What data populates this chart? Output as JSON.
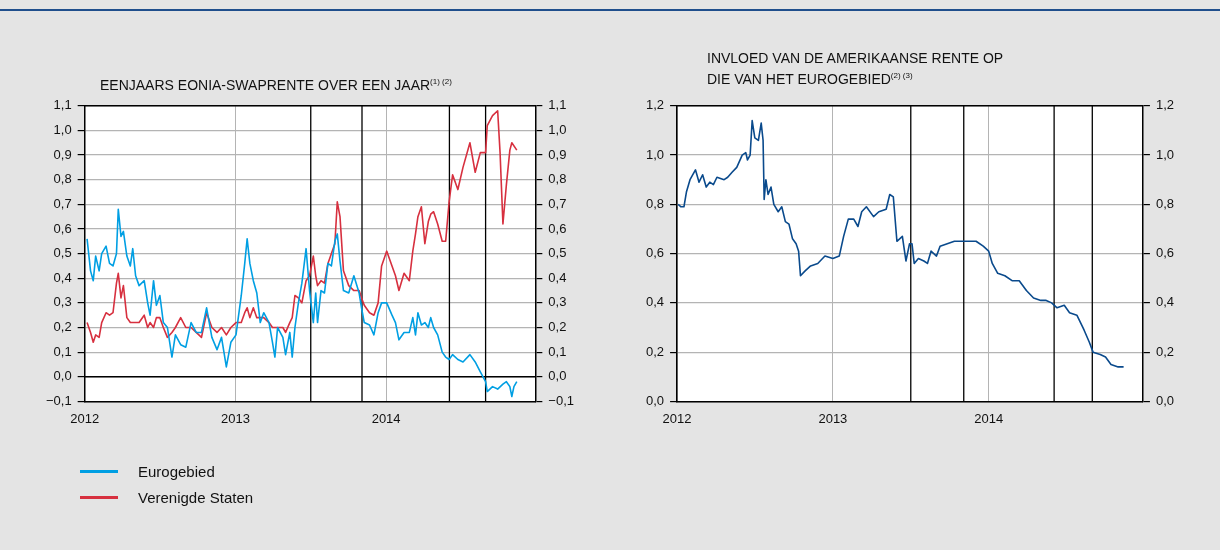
{
  "chart_data": [
    {
      "type": "line",
      "title": "EENJAARS EONIA-SWAPRENTE OVER EEN JAAR$^{(1) (2)}$",
      "xlim": [
        2012.0,
        2014.99
      ],
      "xticks": [
        2012,
        2013,
        2014
      ],
      "ylim": [
        -0.1,
        1.1
      ],
      "yticks": [
        {
          "value": -0.1,
          "label": "−0,1"
        },
        {
          "value": 0,
          "label": "0,0"
        },
        {
          "value": 0.1,
          "label": "0,1"
        },
        {
          "value": 0.2,
          "label": "0,2"
        },
        {
          "value": 0.3,
          "label": "0,3"
        },
        {
          "value": 0.4,
          "label": "0,4"
        },
        {
          "value": 0.5,
          "label": "0,5"
        },
        {
          "value": 0.6,
          "label": "0,6"
        },
        {
          "value": 0.7,
          "label": "0,7"
        },
        {
          "value": 0.8,
          "label": "0,8"
        },
        {
          "value": 0.9,
          "label": "0,9"
        },
        {
          "value": 1.0,
          "label": "1,0"
        },
        {
          "value": 1.1,
          "label": "1,1"
        }
      ],
      "y2lim": [
        -0.1,
        1.1
      ],
      "y2ticks": [
        {
          "value": -0.1,
          "label": "−0,1"
        },
        {
          "value": 0,
          "label": "0,0"
        },
        {
          "value": 0.1,
          "label": "0,1"
        },
        {
          "value": 0.2,
          "label": "0,2"
        },
        {
          "value": 0.3,
          "label": "0,3"
        },
        {
          "value": 0.4,
          "label": "0,4"
        },
        {
          "value": 0.5,
          "label": "0,5"
        },
        {
          "value": 0.6,
          "label": "0,6"
        },
        {
          "value": 0.7,
          "label": "0,7"
        },
        {
          "value": 0.8,
          "label": "0,8"
        },
        {
          "value": 0.9,
          "label": "0,9"
        },
        {
          "value": 1.0,
          "label": "1,0"
        },
        {
          "value": 1.1,
          "label": "1,1"
        }
      ],
      "grid": true,
      "legend": "bottom",
      "ref_lines": [
        {
          "axis": "y",
          "value": 0,
          "color": "#000000"
        },
        {
          "axis": "x",
          "value": 2013.5,
          "color": "#000000"
        },
        {
          "axis": "x",
          "value": 2013.84,
          "color": "#000000"
        },
        {
          "axis": "x",
          "value": 2014.42,
          "color": "#000000"
        },
        {
          "axis": "x",
          "value": 2014.66,
          "color": "#000000"
        }
      ],
      "series": [
        {
          "name": "Eurogebied",
          "color": "#009fe3",
          "x": [
            2012.016,
            2012.039,
            2012.057,
            2012.073,
            2012.096,
            2012.113,
            2012.142,
            2012.165,
            2012.188,
            2012.211,
            2012.223,
            2012.241,
            2012.257,
            2012.28,
            2012.303,
            2012.319,
            2012.338,
            2012.361,
            2012.395,
            2012.418,
            2012.434,
            2012.457,
            2012.476,
            2012.499,
            2012.522,
            2012.549,
            2012.579,
            2012.602,
            2012.637,
            2012.671,
            2012.706,
            2012.74,
            2012.775,
            2012.809,
            2012.844,
            2012.878,
            2012.908,
            2012.94,
            2012.97,
            2013.004,
            2013.039,
            2013.062,
            2013.078,
            2013.096,
            2013.119,
            2013.142,
            2013.165,
            2013.188,
            2013.223,
            2013.246,
            2013.262,
            2013.28,
            2013.315,
            2013.333,
            2013.361,
            2013.377,
            2013.395,
            2013.418,
            2013.441,
            2013.469,
            2013.492,
            2013.517,
            2013.533,
            2013.545,
            2013.568,
            2013.591,
            2013.614,
            2013.637,
            2013.66,
            2013.676,
            2013.694,
            2013.717,
            2013.752,
            2013.786,
            2013.821,
            2013.837,
            2013.855,
            2013.89,
            2013.919,
            2013.947,
            2013.97,
            2014.004,
            2014.039,
            2014.062,
            2014.085,
            2014.119,
            2014.154,
            2014.177,
            2014.195,
            2014.211,
            2014.234,
            2014.257,
            2014.28,
            2014.296,
            2014.315,
            2014.342,
            2014.372,
            2014.395,
            2014.418,
            2014.441,
            2014.476,
            2014.51,
            2014.556,
            2014.591,
            2014.625,
            2014.66,
            2014.671,
            2014.706,
            2014.74,
            2014.775,
            2014.798,
            2014.821,
            2014.834,
            2014.848,
            2014.867
          ],
          "values": [
            0.56,
            0.43,
            0.39,
            0.49,
            0.43,
            0.5,
            0.53,
            0.46,
            0.45,
            0.5,
            0.68,
            0.57,
            0.59,
            0.49,
            0.45,
            0.52,
            0.41,
            0.37,
            0.39,
            0.3,
            0.25,
            0.39,
            0.29,
            0.33,
            0.22,
            0.2,
            0.08,
            0.17,
            0.13,
            0.12,
            0.22,
            0.18,
            0.18,
            0.28,
            0.16,
            0.11,
            0.16,
            0.04,
            0.14,
            0.17,
            0.33,
            0.46,
            0.56,
            0.46,
            0.39,
            0.34,
            0.22,
            0.26,
            0.22,
            0.14,
            0.08,
            0.2,
            0.16,
            0.09,
            0.18,
            0.08,
            0.2,
            0.3,
            0.38,
            0.52,
            0.35,
            0.22,
            0.34,
            0.22,
            0.35,
            0.34,
            0.46,
            0.45,
            0.55,
            0.58,
            0.47,
            0.35,
            0.34,
            0.41,
            0.34,
            0.28,
            0.22,
            0.21,
            0.17,
            0.26,
            0.3,
            0.3,
            0.25,
            0.22,
            0.15,
            0.18,
            0.18,
            0.24,
            0.17,
            0.26,
            0.21,
            0.22,
            0.2,
            0.24,
            0.2,
            0.17,
            0.1,
            0.08,
            0.07,
            0.09,
            0.07,
            0.06,
            0.09,
            0.06,
            0.02,
            -0.02,
            -0.06,
            -0.04,
            -0.05,
            -0.03,
            -0.02,
            -0.04,
            -0.08,
            -0.04,
            -0.02
          ]
        },
        {
          "name": "Verenigde Staten",
          "color": "#d7303f",
          "x": [
            2012.016,
            2012.039,
            2012.057,
            2012.073,
            2012.096,
            2012.113,
            2012.142,
            2012.165,
            2012.188,
            2012.211,
            2012.223,
            2012.241,
            2012.257,
            2012.28,
            2012.303,
            2012.319,
            2012.338,
            2012.361,
            2012.395,
            2012.418,
            2012.434,
            2012.457,
            2012.476,
            2012.499,
            2012.522,
            2012.549,
            2012.579,
            2012.602,
            2012.637,
            2012.671,
            2012.706,
            2012.74,
            2012.775,
            2012.809,
            2012.844,
            2012.878,
            2012.908,
            2012.94,
            2012.97,
            2013.004,
            2013.039,
            2013.062,
            2013.078,
            2013.096,
            2013.119,
            2013.142,
            2013.165,
            2013.188,
            2013.223,
            2013.246,
            2013.262,
            2013.28,
            2013.315,
            2013.333,
            2013.361,
            2013.377,
            2013.395,
            2013.418,
            2013.441,
            2013.469,
            2013.492,
            2013.517,
            2013.533,
            2013.545,
            2013.568,
            2013.591,
            2013.614,
            2013.637,
            2013.66,
            2013.676,
            2013.694,
            2013.717,
            2013.752,
            2013.786,
            2013.821,
            2013.837,
            2013.855,
            2013.89,
            2013.919,
            2013.947,
            2013.97,
            2014.004,
            2014.039,
            2014.062,
            2014.085,
            2014.119,
            2014.154,
            2014.177,
            2014.195,
            2014.211,
            2014.234,
            2014.257,
            2014.28,
            2014.296,
            2014.315,
            2014.342,
            2014.372,
            2014.395,
            2014.418,
            2014.441,
            2014.476,
            2014.51,
            2014.556,
            2014.591,
            2014.625,
            2014.66,
            2014.671,
            2014.706,
            2014.74,
            2014.756,
            2014.775,
            2014.798,
            2014.821,
            2014.834,
            2014.867
          ],
          "values": [
            0.22,
            0.18,
            0.14,
            0.17,
            0.16,
            0.22,
            0.26,
            0.25,
            0.26,
            0.38,
            0.42,
            0.32,
            0.37,
            0.24,
            0.22,
            0.22,
            0.22,
            0.22,
            0.25,
            0.2,
            0.22,
            0.2,
            0.24,
            0.24,
            0.2,
            0.16,
            0.18,
            0.2,
            0.24,
            0.2,
            0.2,
            0.18,
            0.16,
            0.26,
            0.2,
            0.18,
            0.2,
            0.17,
            0.2,
            0.22,
            0.22,
            0.26,
            0.28,
            0.24,
            0.28,
            0.24,
            0.24,
            0.24,
            0.22,
            0.2,
            0.2,
            0.2,
            0.2,
            0.18,
            0.22,
            0.24,
            0.33,
            0.32,
            0.3,
            0.39,
            0.41,
            0.49,
            0.41,
            0.37,
            0.39,
            0.38,
            0.46,
            0.5,
            0.54,
            0.71,
            0.65,
            0.43,
            0.37,
            0.35,
            0.35,
            0.32,
            0.29,
            0.26,
            0.25,
            0.3,
            0.45,
            0.51,
            0.45,
            0.41,
            0.35,
            0.42,
            0.39,
            0.51,
            0.58,
            0.65,
            0.69,
            0.54,
            0.63,
            0.66,
            0.67,
            0.62,
            0.55,
            0.55,
            0.71,
            0.82,
            0.76,
            0.85,
            0.95,
            0.83,
            0.91,
            0.91,
            1.02,
            1.06,
            1.08,
            0.91,
            0.62,
            0.78,
            0.92,
            0.95,
            0.92
          ]
        }
      ]
    },
    {
      "type": "line",
      "title": "INVLOED VAN DE AMERIKAANSE RENTE OP DIE VAN HET EUROGEBIED$^{(2) (3)}$",
      "xlim": [
        2012.0,
        2014.99
      ],
      "xticks": [
        2012,
        2013,
        2014
      ],
      "ylim": [
        0,
        1.2
      ],
      "yticks": [
        {
          "value": 0,
          "label": "0,0"
        },
        {
          "value": 0.2,
          "label": "0,2"
        },
        {
          "value": 0.4,
          "label": "0,4"
        },
        {
          "value": 0.6,
          "label": "0,6"
        },
        {
          "value": 0.8,
          "label": "0,8"
        },
        {
          "value": 1.0,
          "label": "1,0"
        },
        {
          "value": 1.2,
          "label": "1,2"
        }
      ],
      "y2lim": [
        0,
        1.2
      ],
      "y2ticks": [
        {
          "value": 0,
          "label": "0,0"
        },
        {
          "value": 0.2,
          "label": "0,2"
        },
        {
          "value": 0.4,
          "label": "0,4"
        },
        {
          "value": 0.6,
          "label": "0,6"
        },
        {
          "value": 0.8,
          "label": "0,8"
        },
        {
          "value": 1.0,
          "label": "1,0"
        },
        {
          "value": 1.2,
          "label": "1,2"
        }
      ],
      "grid": true,
      "ref_lines": [
        {
          "axis": "x",
          "value": 2013.5,
          "color": "#000000"
        },
        {
          "axis": "x",
          "value": 2013.84,
          "color": "#000000"
        },
        {
          "axis": "x",
          "value": 2014.42,
          "color": "#000000"
        },
        {
          "axis": "x",
          "value": 2014.665,
          "color": "#000000"
        }
      ],
      "series": [
        {
          "color": "#0a4a8c",
          "x": [
            2012.007,
            2012.025,
            2012.044,
            2012.06,
            2012.083,
            2012.118,
            2012.141,
            2012.164,
            2012.187,
            2012.21,
            2012.233,
            2012.256,
            2012.302,
            2012.325,
            2012.353,
            2012.383,
            2012.418,
            2012.441,
            2012.452,
            2012.469,
            2012.482,
            2012.499,
            2012.522,
            2012.54,
            2012.552,
            2012.559,
            2012.57,
            2012.584,
            2012.603,
            2012.621,
            2012.649,
            2012.672,
            2012.695,
            2012.718,
            2012.741,
            2012.764,
            2012.78,
            2012.792,
            2012.822,
            2012.857,
            2012.903,
            2012.949,
            2013.0,
            2013.041,
            2013.069,
            2013.099,
            2013.134,
            2013.161,
            2013.185,
            2013.215,
            2013.261,
            2013.295,
            2013.342,
            2013.365,
            2013.388,
            2013.411,
            2013.446,
            2013.469,
            2013.492,
            2013.508,
            2013.522,
            2013.549,
            2013.584,
            2013.607,
            2013.63,
            2013.665,
            2013.688,
            2013.734,
            2013.78,
            2013.827,
            2013.919,
            2013.965,
            2014.0,
            2014.023,
            2014.058,
            2014.104,
            2014.15,
            2014.196,
            2014.242,
            2014.288,
            2014.335,
            2014.369,
            2014.404,
            2014.439,
            2014.485,
            2014.519,
            2014.566,
            2014.612,
            2014.646,
            2014.67,
            2014.716,
            2014.75,
            2014.785,
            2014.831,
            2014.866
          ],
          "values": [
            0.8,
            0.79,
            0.79,
            0.85,
            0.9,
            0.94,
            0.89,
            0.92,
            0.87,
            0.89,
            0.88,
            0.91,
            0.9,
            0.91,
            0.93,
            0.95,
            1.0,
            1.01,
            0.98,
            1.0,
            1.14,
            1.07,
            1.06,
            1.13,
            1.06,
            0.82,
            0.9,
            0.84,
            0.87,
            0.8,
            0.77,
            0.79,
            0.73,
            0.72,
            0.66,
            0.64,
            0.61,
            0.51,
            0.53,
            0.55,
            0.56,
            0.59,
            0.58,
            0.59,
            0.67,
            0.74,
            0.74,
            0.71,
            0.77,
            0.79,
            0.75,
            0.77,
            0.78,
            0.84,
            0.83,
            0.65,
            0.67,
            0.57,
            0.64,
            0.64,
            0.56,
            0.58,
            0.57,
            0.56,
            0.61,
            0.59,
            0.63,
            0.64,
            0.65,
            0.65,
            0.65,
            0.63,
            0.61,
            0.56,
            0.52,
            0.51,
            0.49,
            0.49,
            0.45,
            0.42,
            0.41,
            0.41,
            0.4,
            0.38,
            0.39,
            0.36,
            0.35,
            0.29,
            0.24,
            0.2,
            0.19,
            0.18,
            0.15,
            0.14,
            0.14
          ]
        }
      ]
    }
  ]
}
